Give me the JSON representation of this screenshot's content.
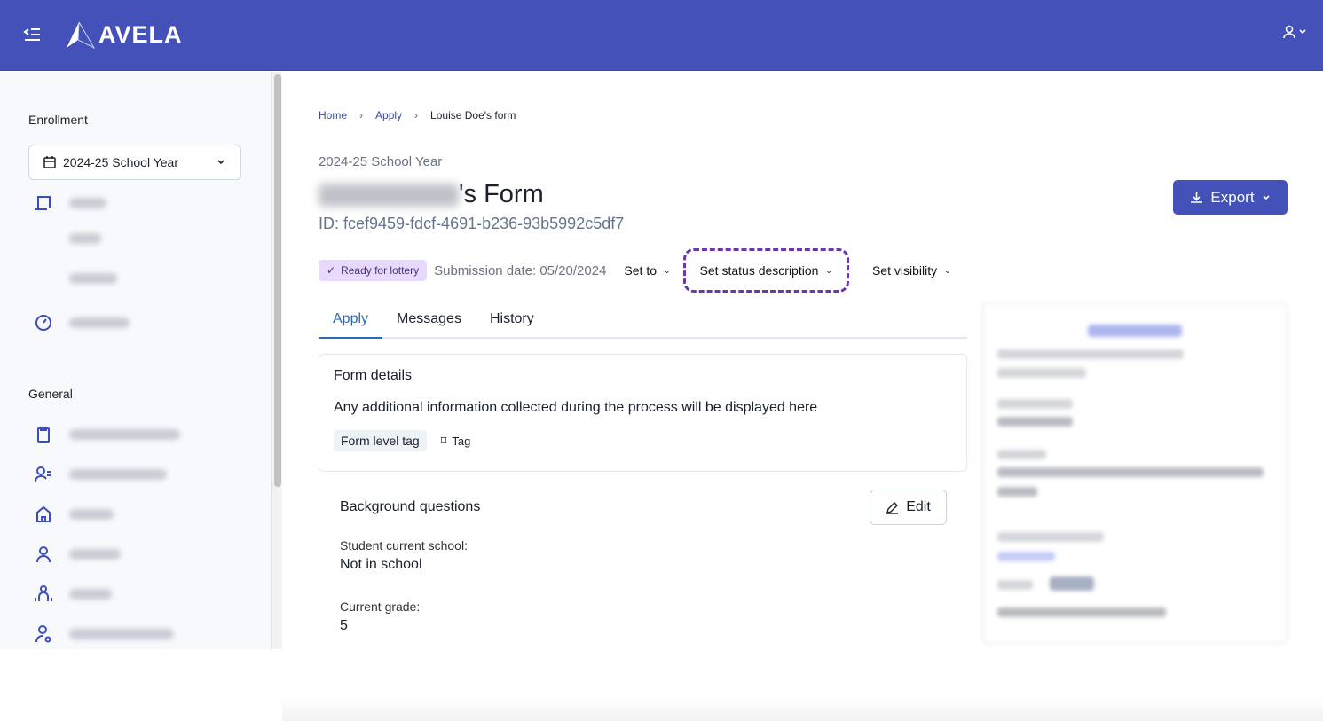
{
  "topbar": {
    "brand": "AVELA",
    "menu_icon": "collapse-menu-icon",
    "user_icon": "user-icon"
  },
  "sidebar": {
    "enrollment_label": "Enrollment",
    "year_select": "2024-25 School Year",
    "enrollment_items": [
      {
        "icon": "forms-icon"
      },
      {
        "icon": null
      },
      {
        "icon": null
      },
      {
        "icon": "gauge-icon"
      }
    ],
    "general_label": "General",
    "general_items": [
      {
        "icon": "clipboard-icon"
      },
      {
        "icon": "users-list-icon"
      },
      {
        "icon": "home-icon"
      },
      {
        "icon": "user-icon"
      },
      {
        "icon": "group-icon"
      },
      {
        "icon": "user-gear-icon"
      }
    ]
  },
  "breadcrumb": {
    "items": [
      "Home",
      "Apply"
    ],
    "current": "Louise Doe's form"
  },
  "header": {
    "school_year": "2024-25 School Year",
    "title_suffix": "'s Form",
    "form_id": "ID: fcef9459-fdcf-4691-b236-93b5992c5df7",
    "export_label": "Export"
  },
  "status": {
    "badge": "Ready for lottery",
    "submission": "Submission date: 05/20/2024",
    "set_to": "Set to",
    "set_status_description": "Set status description",
    "set_visibility": "Set visibility",
    "badge_color": "#e9d8fd",
    "highlight_color": "#6b35b0"
  },
  "tabs": [
    {
      "label": "Apply",
      "active": true
    },
    {
      "label": "Messages"
    },
    {
      "label": "History"
    }
  ],
  "form_details": {
    "title": "Form details",
    "text": "Any additional information collected during the process will be displayed here",
    "tag": "Form level tag",
    "add_tag": "Tag"
  },
  "background": {
    "title": "Background questions",
    "edit_label": "Edit",
    "questions": [
      {
        "label": "Student current school:",
        "value": "Not in school"
      },
      {
        "label": "Current grade:",
        "value": "5"
      }
    ]
  },
  "colors": {
    "brand": "#4351b8",
    "accent": "#3b4cc0"
  }
}
